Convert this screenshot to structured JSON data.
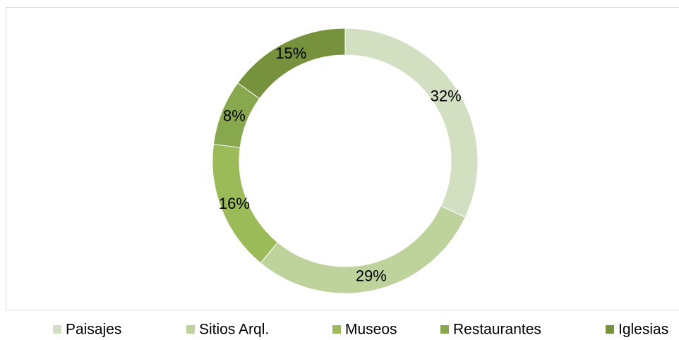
{
  "chart_data": {
    "type": "donut",
    "categories": [
      "Paisajes",
      "Sitios Arql.",
      "Museos",
      "Restaurantes",
      "Iglesias"
    ],
    "values": [
      32,
      29,
      16,
      8,
      15
    ],
    "value_labels": [
      "32%",
      "29%",
      "16%",
      "8%",
      "15%"
    ],
    "colors": [
      "#d3dfc1",
      "#bdd39b",
      "#9bbb59",
      "#87a84c",
      "#76923c"
    ],
    "legend": "bottom"
  }
}
